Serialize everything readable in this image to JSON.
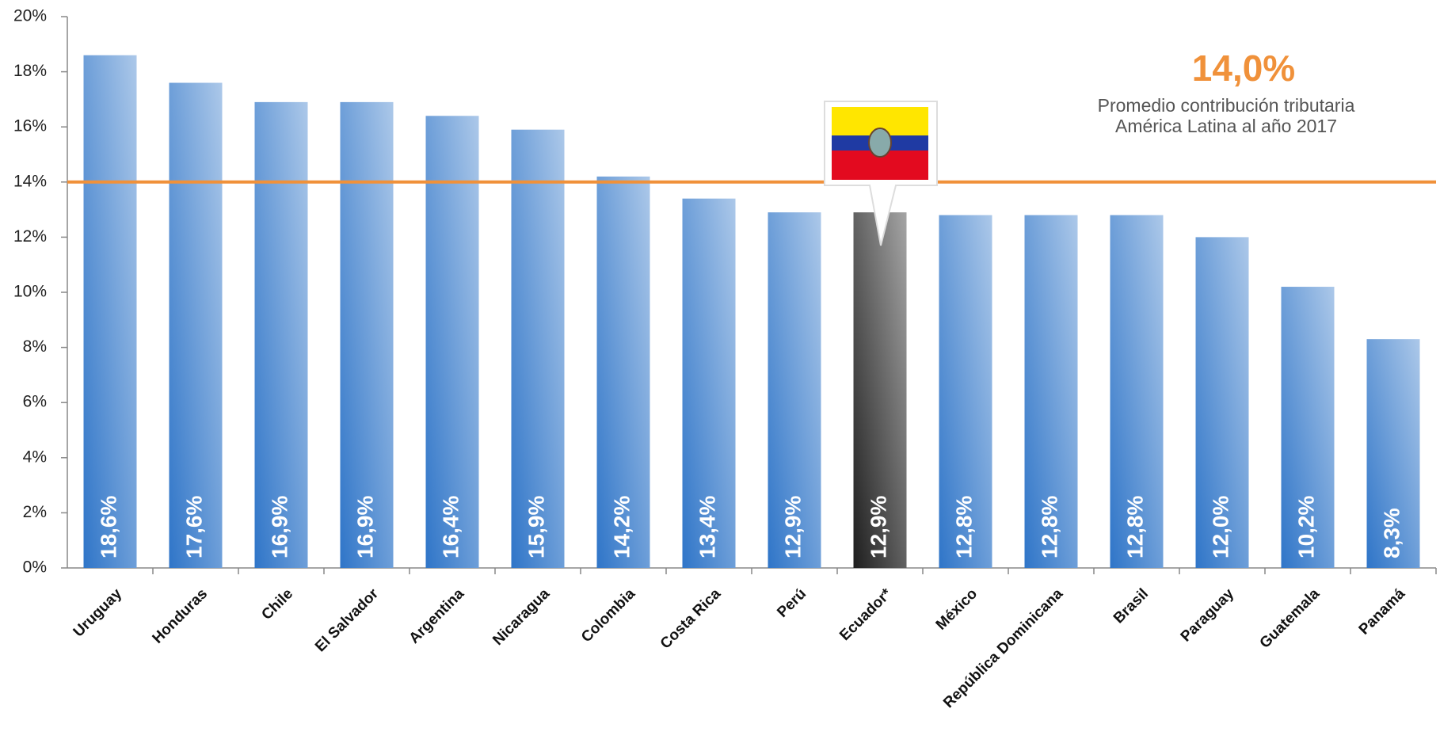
{
  "chart_data": {
    "type": "bar",
    "categories": [
      "Uruguay",
      "Honduras",
      "Chile",
      "El Salvador",
      "Argentina",
      "Nicaragua",
      "Colombia",
      "Costa Rica",
      "Perú",
      "Ecuador*",
      "México",
      "República Dominicana",
      "Brasil",
      "Paraguay",
      "Guatemala",
      "Panamá"
    ],
    "values": [
      18.6,
      17.6,
      16.9,
      16.9,
      16.4,
      15.9,
      14.2,
      13.4,
      12.9,
      12.9,
      12.8,
      12.8,
      12.8,
      12.0,
      10.2,
      8.3
    ],
    "value_labels": [
      "18,6%",
      "17,6%",
      "16,9%",
      "16,9%",
      "16,4%",
      "15,9%",
      "14,2%",
      "13,4%",
      "12,9%",
      "12,9%",
      "12,8%",
      "12,8%",
      "12,8%",
      "12,0%",
      "10,2%",
      "8,3%"
    ],
    "colors": [
      "#2f75c8",
      "#2f75c8",
      "#2f75c8",
      "#2f75c8",
      "#2f75c8",
      "#2f75c8",
      "#2f75c8",
      "#2f75c8",
      "#2f75c8",
      "#1e1e1e",
      "#2f75c8",
      "#2f75c8",
      "#2f75c8",
      "#2f75c8",
      "#2f75c8",
      "#2f75c8"
    ],
    "ylim": [
      0,
      20
    ],
    "yticks": [
      {
        "value": 0,
        "label": "0%"
      },
      {
        "value": 2,
        "label": "2%"
      },
      {
        "value": 4,
        "label": "4%"
      },
      {
        "value": 6,
        "label": "6%"
      },
      {
        "value": 8,
        "label": "8%"
      },
      {
        "value": 10,
        "label": "10%"
      },
      {
        "value": 12,
        "label": "12%"
      },
      {
        "value": 14,
        "label": "14%"
      },
      {
        "value": 16,
        "label": "16%"
      },
      {
        "value": 18,
        "label": "18%"
      },
      {
        "value": 20,
        "label": "20%"
      }
    ],
    "reference_line": {
      "value": 14,
      "label": "14,0%",
      "color": "#f0913a",
      "description": [
        "Promedio contribución tributaria",
        "América Latina al año 2017"
      ]
    }
  }
}
